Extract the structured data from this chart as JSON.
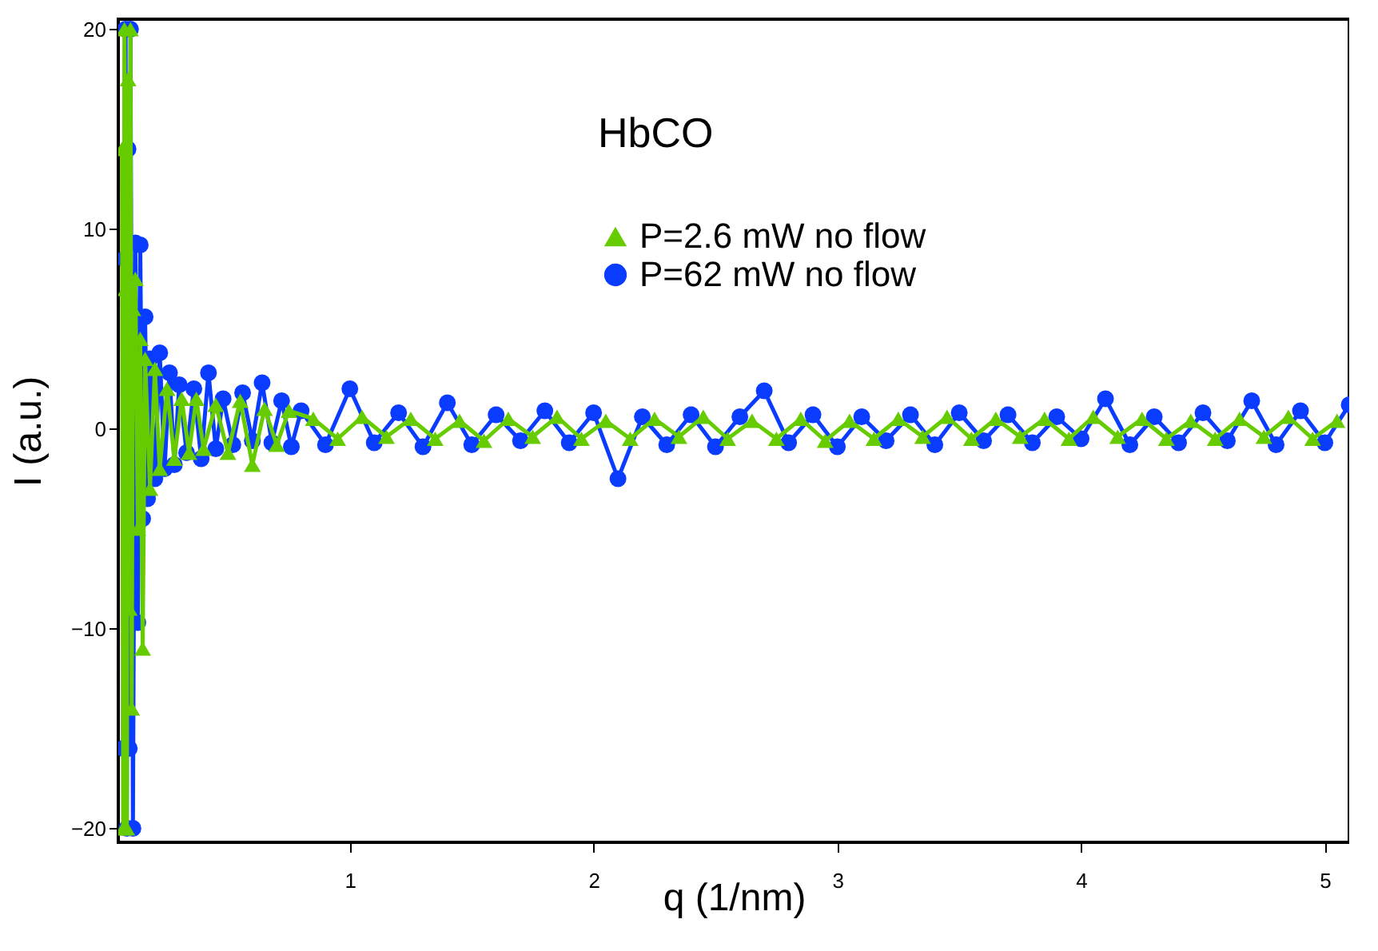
{
  "chart_data": {
    "type": "line",
    "title": "HbCO",
    "xlabel": "q (1/nm)",
    "ylabel": "I (a.u.)",
    "xlim": [
      0.05,
      5.1
    ],
    "ylim": [
      -20.7,
      20.5
    ],
    "xticks": [
      1,
      2,
      3,
      4,
      5
    ],
    "yticks": [
      -20,
      -10,
      0,
      10,
      20
    ],
    "grid": false,
    "legend": "top",
    "line_style": "solid",
    "series": [
      {
        "name": "P=2.6 mW   no flow",
        "color": "#66cc00",
        "marker": "triangle",
        "x": [
          0.065,
          0.07,
          0.075,
          0.08,
          0.085,
          0.09,
          0.095,
          0.1,
          0.105,
          0.11,
          0.12,
          0.13,
          0.14,
          0.15,
          0.16,
          0.18,
          0.2,
          0.22,
          0.25,
          0.28,
          0.31,
          0.34,
          0.37,
          0.4,
          0.45,
          0.5,
          0.55,
          0.6,
          0.65,
          0.7,
          0.75,
          0.85,
          0.95,
          1.05,
          1.15,
          1.25,
          1.35,
          1.45,
          1.55,
          1.65,
          1.75,
          1.85,
          1.95,
          2.05,
          2.15,
          2.25,
          2.35,
          2.45,
          2.55,
          2.65,
          2.75,
          2.85,
          2.95,
          3.05,
          3.15,
          3.25,
          3.35,
          3.45,
          3.55,
          3.65,
          3.75,
          3.85,
          3.95,
          4.05,
          4.15,
          4.25,
          4.35,
          4.45,
          4.55,
          4.65,
          4.75,
          4.85,
          4.95,
          5.05
        ],
        "values": [
          14,
          -20,
          20,
          7,
          -20,
          17.5,
          -9,
          20,
          -14,
          6,
          7.5,
          -5,
          4.5,
          -11,
          3.5,
          -3,
          3,
          -2,
          2,
          -1.5,
          1.5,
          -1.2,
          1.5,
          -1,
          1.2,
          -1.2,
          1.4,
          -1.8,
          1,
          -0.8,
          0.9,
          0.5,
          -0.5,
          0.6,
          -0.4,
          0.5,
          -0.5,
          0.4,
          -0.6,
          0.5,
          -0.4,
          0.6,
          -0.5,
          0.4,
          -0.5,
          0.5,
          -0.4,
          0.6,
          -0.5,
          0.4,
          -0.5,
          0.5,
          -0.6,
          0.4,
          -0.5,
          0.5,
          -0.4,
          0.6,
          -0.5,
          0.5,
          -0.4,
          0.5,
          -0.5,
          0.6,
          -0.4,
          0.5,
          -0.5,
          0.4,
          -0.5,
          0.5,
          -0.4,
          0.6,
          -0.5,
          0.4
        ]
      },
      {
        "name": "P=62 mW no flow",
        "color": "#0a3cff",
        "marker": "circle",
        "x": [
          0.07,
          0.075,
          0.08,
          0.085,
          0.09,
          0.095,
          0.1,
          0.11,
          0.12,
          0.13,
          0.14,
          0.15,
          0.16,
          0.17,
          0.18,
          0.2,
          0.22,
          0.24,
          0.26,
          0.28,
          0.3,
          0.33,
          0.36,
          0.39,
          0.42,
          0.45,
          0.48,
          0.52,
          0.56,
          0.6,
          0.64,
          0.68,
          0.72,
          0.76,
          0.8,
          0.9,
          1.0,
          1.1,
          1.2,
          1.3,
          1.4,
          1.5,
          1.6,
          1.7,
          1.8,
          1.9,
          2.0,
          2.1,
          2.2,
          2.3,
          2.4,
          2.5,
          2.6,
          2.7,
          2.8,
          2.9,
          3.0,
          3.1,
          3.2,
          3.3,
          3.4,
          3.5,
          3.6,
          3.7,
          3.8,
          3.9,
          4.0,
          4.1,
          4.2,
          4.3,
          4.4,
          4.5,
          4.6,
          4.7,
          4.8,
          4.9,
          5.0,
          5.1
        ],
        "values": [
          -16,
          8.5,
          20,
          -20,
          14,
          -16,
          20,
          -20,
          9.3,
          -9.7,
          9.2,
          -4.5,
          5.6,
          -3.5,
          3.5,
          -2.5,
          3.8,
          -2,
          2.8,
          -1.8,
          2.2,
          -1.2,
          2,
          -1.5,
          2.8,
          -1,
          1.5,
          -0.8,
          1.8,
          -0.6,
          2.3,
          -0.7,
          1.4,
          -0.9,
          0.9,
          -0.8,
          2.0,
          -0.7,
          0.8,
          -0.9,
          1.3,
          -0.8,
          0.7,
          -0.6,
          0.9,
          -0.7,
          0.8,
          -2.5,
          0.6,
          -0.8,
          0.7,
          -0.9,
          0.6,
          1.9,
          -0.7,
          0.7,
          -0.9,
          0.6,
          -0.6,
          0.7,
          -0.8,
          0.8,
          -0.6,
          0.7,
          -0.7,
          0.6,
          -0.5,
          1.5,
          -0.8,
          0.6,
          -0.7,
          0.8,
          -0.6,
          1.4,
          -0.8,
          0.9,
          -0.7,
          1.2
        ]
      }
    ]
  }
}
